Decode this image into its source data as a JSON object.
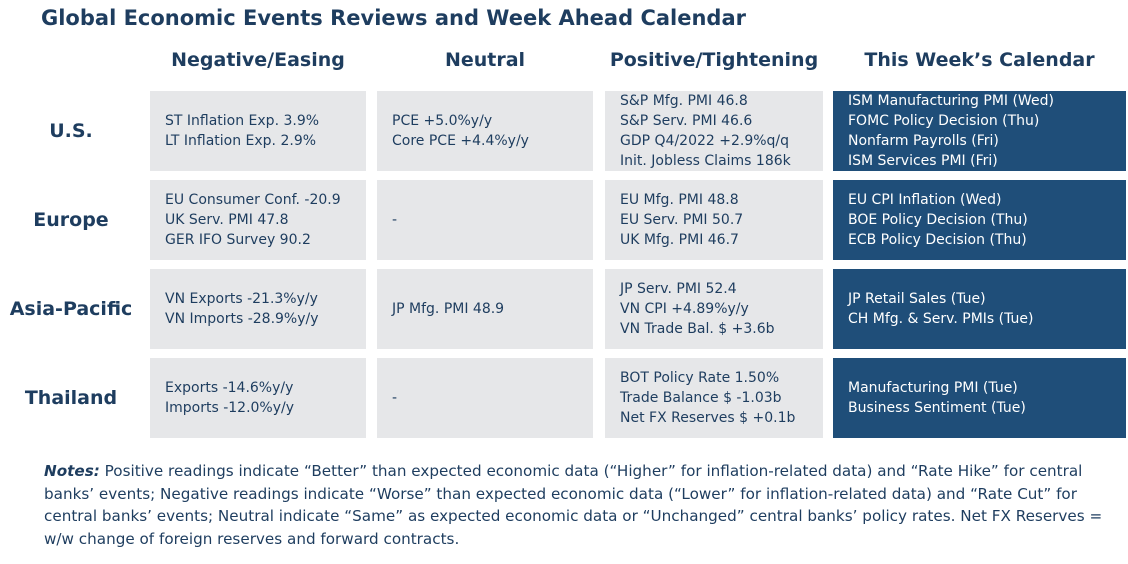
{
  "title": "Global Economic Events Reviews and Week Ahead Calendar",
  "columns": [
    "Negative/Easing",
    "Neutral",
    "Positive/Tightening",
    "This Week’s Calendar"
  ],
  "rows": [
    {
      "label": "U.S.",
      "negative": [
        "ST Inflation Exp. 3.9%",
        "LT Inflation Exp. 2.9%"
      ],
      "neutral": [
        "PCE +5.0%y/y",
        "Core PCE +4.4%y/y"
      ],
      "positive": [
        "S&P Mfg. PMI 46.8",
        "S&P Serv. PMI 46.6",
        "GDP Q4/2022 +2.9%q/q",
        "Init. Jobless Claims 186k"
      ],
      "calendar": [
        "ISM Manufacturing PMI (Wed)",
        "FOMC Policy Decision (Thu)",
        "Nonfarm Payrolls (Fri)",
        "ISM Services PMI (Fri)"
      ]
    },
    {
      "label": "Europe",
      "negative": [
        "EU Consumer Conf. -20.9",
        "UK Serv. PMI 47.8",
        "GER IFO Survey 90.2"
      ],
      "neutral": [
        "-"
      ],
      "positive": [
        "EU Mfg. PMI 48.8",
        "EU Serv. PMI 50.7",
        "UK Mfg. PMI 46.7"
      ],
      "calendar": [
        "EU CPI Inflation (Wed)",
        "BOE Policy Decision (Thu)",
        "ECB Policy Decision (Thu)"
      ]
    },
    {
      "label": "Asia-\nPacific",
      "negative": [
        "VN Exports -21.3%y/y",
        "VN Imports -28.9%y/y"
      ],
      "neutral": [
        "JP Mfg. PMI 48.9"
      ],
      "positive": [
        "JP Serv. PMI 52.4",
        "VN CPI +4.89%y/y",
        "VN Trade Bal. $ +3.6b"
      ],
      "calendar": [
        "JP Retail Sales (Tue)",
        "CH Mfg. & Serv. PMIs (Tue)"
      ]
    },
    {
      "label": "Thailand",
      "negative": [
        "Exports -14.6%y/y",
        "Imports -12.0%y/y"
      ],
      "neutral": [
        "-"
      ],
      "positive": [
        "BOT Policy Rate 1.50%",
        "Trade Balance $ -1.03b",
        "Net FX Reserves $ +0.1b"
      ],
      "calendar": [
        "Manufacturing PMI (Tue)",
        "Business Sentiment (Tue)"
      ]
    }
  ],
  "notes": {
    "label": "Notes:",
    "text": " Positive readings indicate “Better” than expected economic data (“Higher” for inflation-related data) and “Rate Hike” for central banks’ events; Negative readings indicate “Worse” than expected economic data (“Lower” for inflation-related data) and “Rate Cut” for central banks’ events; Neutral indicate “Same” as expected economic data or “Unchanged” central banks’ policy rates. Net FX Reserves = w/w change of foreign reserves and forward contracts."
  },
  "colors": {
    "text_navy": "#1e3d5f",
    "cell_grey": "#e6e7e9",
    "cell_navy": "#1f4e79"
  }
}
